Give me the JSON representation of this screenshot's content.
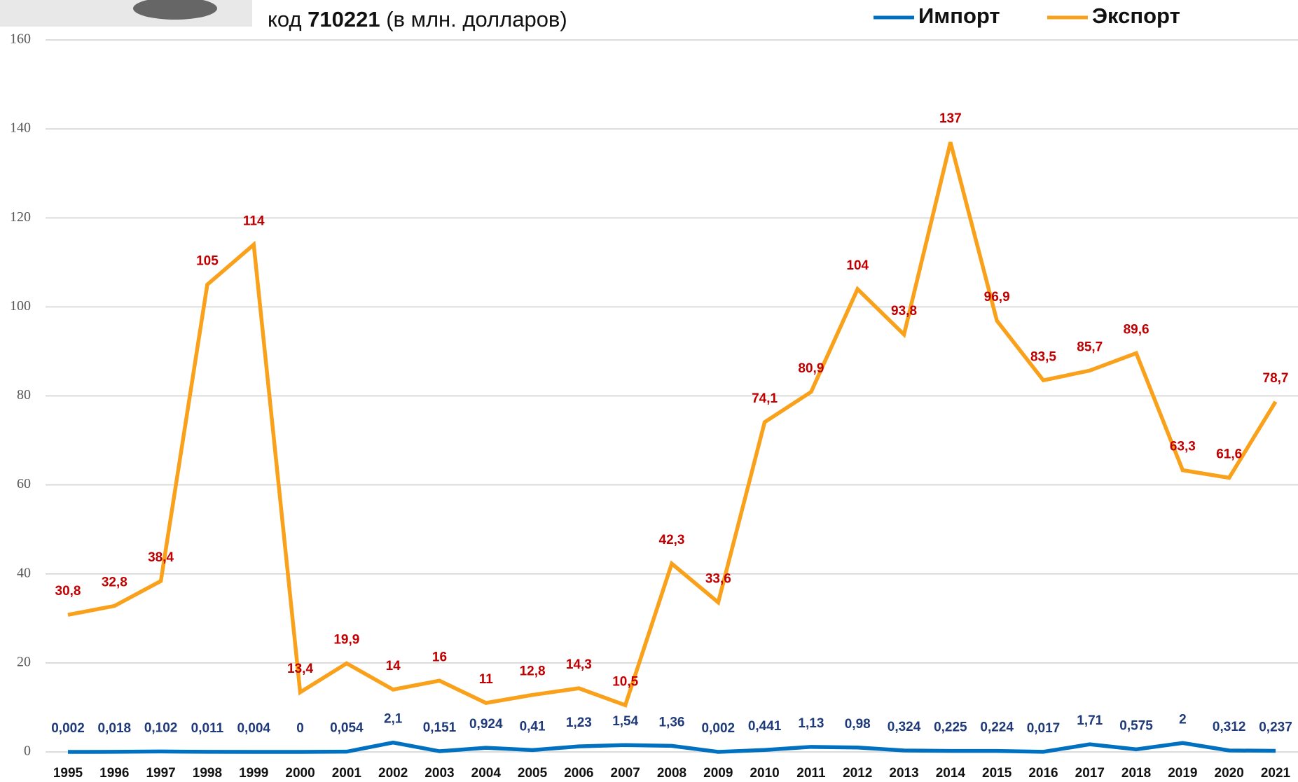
{
  "chart_data": {
    "type": "line",
    "subtitle": [
      "код ",
      "710221",
      " (в млн. долларов)"
    ],
    "categories": [
      "1995",
      "1996",
      "1997",
      "1998",
      "1999",
      "2000",
      "2001",
      "2002",
      "2003",
      "2004",
      "2005",
      "2006",
      "2007",
      "2008",
      "2009",
      "2010",
      "2011",
      "2012",
      "2013",
      "2014",
      "2015",
      "2016",
      "2017",
      "2018",
      "2019",
      "2020",
      "2021"
    ],
    "series": [
      {
        "name": "Импорт",
        "color": "#0070c0",
        "label_color": "#1f3a7a",
        "values": [
          0.002,
          0.018,
          0.102,
          0.011,
          0.004,
          0,
          0.054,
          2.1,
          0.151,
          0.924,
          0.41,
          1.23,
          1.54,
          1.36,
          0.002,
          0.441,
          1.13,
          0.98,
          0.324,
          0.225,
          0.224,
          0.017,
          1.71,
          0.575,
          2,
          0.312,
          0.237
        ],
        "value_labels": [
          "0,002",
          "0,018",
          "0,102",
          "0,011",
          "0,004",
          "0",
          "0,054",
          "2,1",
          "0,151",
          "0,924",
          "0,41",
          "1,23",
          "1,54",
          "1,36",
          "0,002",
          "0,441",
          "1,13",
          "0,98",
          "0,324",
          "0,225",
          "0,224",
          "0,017",
          "1,71",
          "0,575",
          "2",
          "0,312",
          "0,237"
        ]
      },
      {
        "name": "Экспорт",
        "color": "#f9a11b",
        "label_color": "#c00000",
        "values": [
          30.8,
          32.8,
          38.4,
          105,
          114,
          13.4,
          19.9,
          14,
          16,
          11,
          12.8,
          14.3,
          10.5,
          42.3,
          33.6,
          74.1,
          80.9,
          104,
          93.8,
          137,
          96.9,
          83.5,
          85.7,
          89.6,
          63.3,
          61.6,
          78.7
        ],
        "value_labels": [
          "30,8",
          "32,8",
          "38,4",
          "105",
          "114",
          "13,4",
          "19,9",
          "14",
          "16",
          "11",
          "12,8",
          "14,3",
          "10,5",
          "42,3",
          "33,6",
          "74,1",
          "80,9",
          "104",
          "93,8",
          "137",
          "96,9",
          "83,5",
          "85,7",
          "89,6",
          "63,3",
          "61,6",
          "78,7"
        ]
      }
    ],
    "ylim": [
      0,
      160
    ],
    "yticks": [
      0,
      20,
      40,
      60,
      80,
      100,
      120,
      140,
      160
    ],
    "grid": true
  }
}
